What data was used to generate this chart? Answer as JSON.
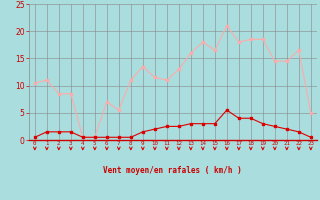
{
  "x": [
    0,
    1,
    2,
    3,
    4,
    5,
    6,
    7,
    8,
    9,
    10,
    11,
    12,
    13,
    14,
    15,
    16,
    17,
    18,
    19,
    20,
    21,
    22,
    23
  ],
  "rafales": [
    10.5,
    11.0,
    8.5,
    8.5,
    0.5,
    0.5,
    7.0,
    5.5,
    11.0,
    13.5,
    11.5,
    11.0,
    13.0,
    16.0,
    18.0,
    16.5,
    21.0,
    18.0,
    18.5,
    18.5,
    14.5,
    14.5,
    16.5,
    5.0
  ],
  "moyen": [
    0.5,
    1.5,
    1.5,
    1.5,
    0.5,
    0.5,
    0.5,
    0.5,
    0.5,
    1.5,
    2.0,
    2.5,
    2.5,
    3.0,
    3.0,
    3.0,
    5.5,
    4.0,
    4.0,
    3.0,
    2.5,
    2.0,
    1.5,
    0.5
  ],
  "rafales_color": "#ffaaaa",
  "moyen_color": "#dd0000",
  "arrow_color": "#dd0000",
  "bg_color": "#aadddd",
  "grid_color": "#888888",
  "axis_line_color": "#cc0000",
  "xlabel": "Vent moyen/en rafales ( km/h )",
  "ylim": [
    0,
    25
  ],
  "yticks": [
    0,
    5,
    10,
    15,
    20,
    25
  ],
  "xlim": [
    -0.5,
    23.5
  ]
}
